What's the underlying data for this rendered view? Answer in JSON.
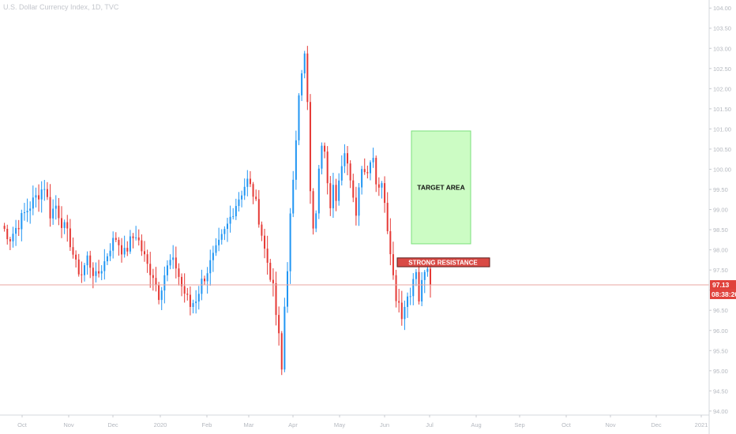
{
  "header": {
    "symbol_line": "U.S. Dollar Currency Index, 1D, TVC"
  },
  "price_badge": {
    "value": "97.13",
    "countdown": "08:38:26",
    "color": "#e0423c"
  },
  "annotations": {
    "target_label": "TARGET AREA",
    "resistance_label": "STRONG RESISTANCE",
    "target_fill": "#ccfcc4",
    "target_border": "#7be07b",
    "resistance_fill": "#d94a45",
    "resistance_border": "#5a1b1b"
  },
  "chart_data": {
    "type": "candlestick",
    "title": "U.S. Dollar Currency Index, 1D, TVC",
    "x_ticks": [
      "Oct",
      "Nov",
      "Dec",
      "2020",
      "Feb",
      "Mar",
      "Apr",
      "May",
      "Jun",
      "Jul",
      "Aug",
      "Sep",
      "Oct",
      "Nov",
      "Dec",
      "2021"
    ],
    "y_ticks": [
      "94.00",
      "94.50",
      "95.00",
      "95.50",
      "96.00",
      "96.50",
      "97.00",
      "97.50",
      "98.00",
      "98.50",
      "99.00",
      "99.50",
      "100.00",
      "100.50",
      "101.00",
      "101.50",
      "102.00",
      "102.50",
      "103.00",
      "103.50",
      "104.00"
    ],
    "ylim": [
      93.9,
      104.2
    ],
    "last_price": 97.13,
    "up_color": "#2196f3",
    "down_color": "#e53935",
    "grid": false,
    "target_area": {
      "label": "TARGET AREA",
      "y_range": [
        98.15,
        100.95
      ]
    },
    "strong_resistance": {
      "label": "STRONG RESISTANCE",
      "y_range": [
        97.58,
        97.8
      ]
    },
    "price_path": [
      [
        0,
        98.6
      ],
      [
        3,
        98.3
      ],
      [
        8,
        98.9
      ],
      [
        12,
        99.3
      ],
      [
        15,
        99.6
      ],
      [
        17,
        98.9
      ],
      [
        19,
        99.1
      ],
      [
        21,
        98.7
      ],
      [
        24,
        98.2
      ],
      [
        26,
        97.6
      ],
      [
        28,
        97.4
      ],
      [
        30,
        97.8
      ],
      [
        33,
        97.3
      ],
      [
        36,
        97.7
      ],
      [
        38,
        98.1
      ],
      [
        40,
        98.3
      ],
      [
        43,
        97.9
      ],
      [
        45,
        98.2
      ],
      [
        47,
        98.4
      ],
      [
        49,
        98.0
      ],
      [
        51,
        97.6
      ],
      [
        53,
        97.4
      ],
      [
        55,
        96.9
      ],
      [
        57,
        97.4
      ],
      [
        59,
        97.7
      ],
      [
        61,
        97.6
      ],
      [
        63,
        97.1
      ],
      [
        66,
        96.6
      ],
      [
        68,
        96.8
      ],
      [
        70,
        97.2
      ],
      [
        72,
        97.5
      ],
      [
        74,
        97.8
      ],
      [
        76,
        98.1
      ],
      [
        79,
        98.6
      ],
      [
        81,
        99.0
      ],
      [
        83,
        99.3
      ],
      [
        85,
        99.6
      ],
      [
        86,
        99.7
      ],
      [
        88,
        99.4
      ],
      [
        90,
        98.8
      ],
      [
        92,
        98.0
      ],
      [
        94,
        97.4
      ],
      [
        95,
        97.0
      ],
      [
        96,
        96.4
      ],
      [
        97,
        95.8
      ],
      [
        98,
        95.0
      ],
      [
        99,
        96.6
      ],
      [
        100,
        97.6
      ],
      [
        101,
        98.8
      ],
      [
        102,
        99.6
      ],
      [
        103,
        100.8
      ],
      [
        104,
        102.0
      ],
      [
        105,
        102.5
      ],
      [
        106,
        102.8
      ],
      [
        107,
        101.6
      ],
      [
        108,
        99.4
      ],
      [
        109,
        98.4
      ],
      [
        110,
        99.0
      ],
      [
        111,
        99.9
      ],
      [
        112,
        100.7
      ],
      [
        113,
        100.6
      ],
      [
        114,
        99.8
      ],
      [
        115,
        99.2
      ],
      [
        116,
        99.6
      ],
      [
        117,
        99.1
      ],
      [
        118,
        99.6
      ],
      [
        119,
        100.2
      ],
      [
        120,
        100.4
      ],
      [
        121,
        100.3
      ],
      [
        122,
        99.8
      ],
      [
        123,
        99.3
      ],
      [
        124,
        99.0
      ],
      [
        125,
        99.6
      ],
      [
        126,
        100.1
      ],
      [
        127,
        100.0
      ],
      [
        128,
        99.8
      ],
      [
        129,
        100.3
      ],
      [
        130,
        100.4
      ],
      [
        131,
        99.8
      ],
      [
        132,
        99.5
      ],
      [
        133,
        99.8
      ],
      [
        134,
        99.2
      ],
      [
        135,
        98.6
      ],
      [
        136,
        97.9
      ],
      [
        137,
        97.4
      ],
      [
        138,
        96.9
      ],
      [
        139,
        96.6
      ],
      [
        140,
        96.3
      ],
      [
        141,
        96.5
      ],
      [
        142,
        96.9
      ],
      [
        143,
        96.7
      ],
      [
        144,
        97.2
      ],
      [
        145,
        97.4
      ],
      [
        146,
        96.8
      ],
      [
        147,
        97.3
      ],
      [
        148,
        97.6
      ],
      [
        149,
        97.4
      ],
      [
        150,
        97.13
      ]
    ]
  }
}
